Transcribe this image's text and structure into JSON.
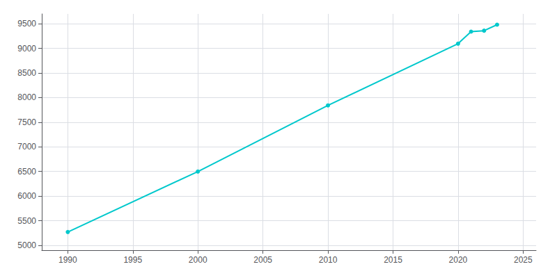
{
  "chart_data": {
    "type": "line",
    "x": [
      1990,
      2000,
      2010,
      2020,
      2021,
      2022,
      2023
    ],
    "values": [
      5270,
      6498,
      7841,
      9096,
      9340,
      9359,
      9481
    ],
    "color": "#00C8CC",
    "marker": "circle",
    "xlim": [
      1988,
      2026
    ],
    "ylim": [
      4900,
      9700
    ],
    "xticks": [
      1990,
      1995,
      2000,
      2005,
      2010,
      2015,
      2020,
      2025
    ],
    "yticks": [
      5000,
      5500,
      6000,
      6500,
      7000,
      7500,
      8000,
      8500,
      9000,
      9500
    ],
    "grid": true
  }
}
